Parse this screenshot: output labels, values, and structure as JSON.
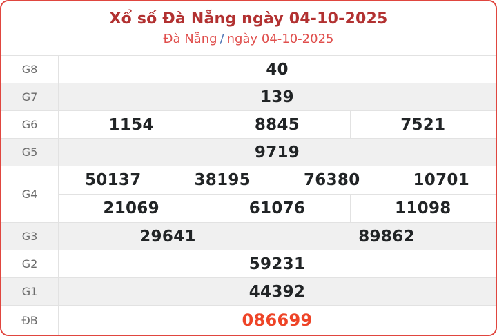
{
  "header": {
    "title": "Xổ số Đà Nẵng ngày 04-10-2025",
    "subtitle_region": "Đà Nẵng",
    "subtitle_separator": "/",
    "subtitle_date": "ngày 04-10-2025"
  },
  "colors": {
    "card_border": "#e0463f",
    "title_red": "#b23131",
    "subtitle_red": "#e04f4d",
    "separator_blue": "#4a72b4",
    "label_gray": "#6b6b6b",
    "value_dark": "#212426",
    "shaded_row_bg": "#f0f0f0",
    "divider": "#e2e2e2",
    "special_prize_red": "#ee4427"
  },
  "table": {
    "rows": [
      {
        "label": "G8",
        "shaded": false,
        "lines": [
          [
            "40"
          ]
        ]
      },
      {
        "label": "G7",
        "shaded": true,
        "lines": [
          [
            "139"
          ]
        ]
      },
      {
        "label": "G6",
        "shaded": false,
        "lines": [
          [
            "1154",
            "8845",
            "7521"
          ]
        ]
      },
      {
        "label": "G5",
        "shaded": true,
        "lines": [
          [
            "9719"
          ]
        ]
      },
      {
        "label": "G4",
        "shaded": false,
        "tall": true,
        "lines": [
          [
            "50137",
            "38195",
            "76380",
            "10701"
          ],
          [
            "21069",
            "61076",
            "11098"
          ]
        ]
      },
      {
        "label": "G3",
        "shaded": true,
        "lines": [
          [
            "29641",
            "89862"
          ]
        ]
      },
      {
        "label": "G2",
        "shaded": false,
        "lines": [
          [
            "59231"
          ]
        ]
      },
      {
        "label": "G1",
        "shaded": true,
        "lines": [
          [
            "44392"
          ]
        ]
      },
      {
        "label": "ĐB",
        "shaded": false,
        "special": true,
        "grow": true,
        "lines": [
          [
            "086699"
          ]
        ]
      }
    ]
  }
}
